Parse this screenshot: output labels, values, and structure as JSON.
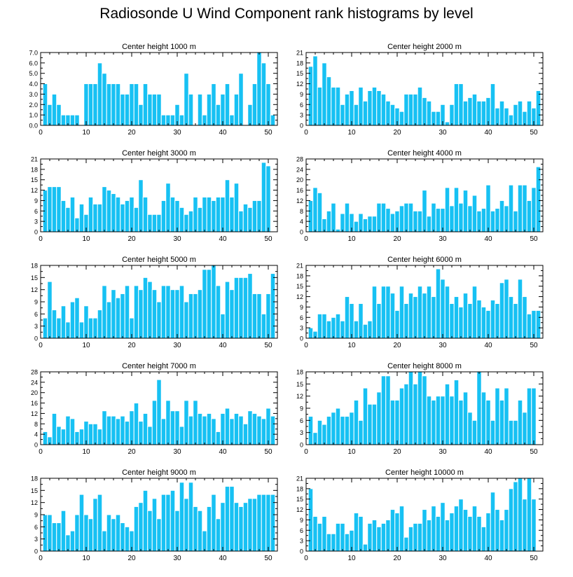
{
  "title": "Radiosonde U Wind Component rank histograms by level",
  "colors": {
    "bar": "#17C1F3",
    "bar_edge": "#ffffff",
    "axis": "#000000"
  },
  "chart_data": [
    {
      "type": "bar",
      "title": "Center height 1000 m",
      "ylim": [
        0,
        7
      ],
      "yticks": [
        0,
        1,
        2,
        3,
        4,
        5,
        6,
        7
      ],
      "ytick_labels": [
        "0.0",
        "1.0",
        "2.0",
        "3.0",
        "4.0",
        "5.0",
        "6.0",
        "7.0"
      ],
      "xlim": [
        0,
        52
      ],
      "xticks": [
        0,
        10,
        20,
        30,
        40,
        50
      ],
      "xtick_labels": [
        "0",
        "10",
        "20",
        "30",
        "40",
        "50"
      ],
      "y_axis_side": "left",
      "values": [
        4,
        2,
        3,
        2,
        1,
        1,
        1,
        1,
        0,
        4,
        4,
        4,
        6,
        5,
        4,
        4,
        4,
        3,
        3,
        4,
        4,
        2,
        4,
        3,
        3,
        3,
        1,
        1,
        1,
        2,
        1,
        5,
        3,
        0,
        3,
        1,
        3,
        4,
        2,
        3,
        4,
        1,
        3,
        5,
        0,
        2,
        4,
        7,
        6,
        4,
        1
      ]
    },
    {
      "type": "bar",
      "title": "Center height 2000 m",
      "ylim": [
        0,
        21
      ],
      "yticks": [
        0,
        3,
        6,
        9,
        12,
        15,
        18,
        21
      ],
      "ytick_labels": [
        "0",
        "3",
        "6",
        "9",
        "12",
        "15",
        "18",
        "21"
      ],
      "xlim": [
        0,
        52
      ],
      "xticks": [
        0,
        10,
        20,
        30,
        40,
        50
      ],
      "xtick_labels": [
        "0",
        "10",
        "20",
        "30",
        "40",
        "50"
      ],
      "y_axis_side": "right",
      "values": [
        17,
        20,
        11,
        18,
        14,
        11,
        11,
        6,
        9,
        10,
        6,
        11,
        7,
        10,
        11,
        10,
        9,
        7,
        6,
        5,
        4,
        9,
        9,
        9,
        11,
        8,
        7,
        4,
        4,
        6,
        1,
        6,
        12,
        12,
        7,
        8,
        9,
        7,
        7,
        8,
        12,
        5,
        7,
        5,
        3,
        6,
        7,
        4,
        7,
        5,
        10
      ]
    },
    {
      "type": "bar",
      "title": "Center height 3000 m",
      "ylim": [
        0,
        21
      ],
      "yticks": [
        0,
        3,
        6,
        9,
        12,
        15,
        18,
        21
      ],
      "ytick_labels": [
        "0",
        "3",
        "6",
        "9",
        "12",
        "15",
        "18",
        "21"
      ],
      "xlim": [
        0,
        52
      ],
      "xticks": [
        0,
        10,
        20,
        30,
        40,
        50
      ],
      "xtick_labels": [
        "0",
        "10",
        "20",
        "30",
        "40",
        "50"
      ],
      "y_axis_side": "left",
      "values": [
        12,
        13,
        13,
        13,
        9,
        7,
        10,
        4,
        8,
        5,
        10,
        8,
        8,
        13,
        12,
        11,
        10,
        8,
        9,
        10,
        7,
        15,
        10,
        5,
        5,
        5,
        9,
        14,
        10,
        9,
        7,
        5,
        6,
        10,
        7,
        10,
        10,
        9,
        10,
        10,
        15,
        10,
        14,
        6,
        8,
        7,
        9,
        9,
        20,
        19,
        0
      ]
    },
    {
      "type": "bar",
      "title": "Center height 4000 m",
      "ylim": [
        0,
        28
      ],
      "yticks": [
        0,
        4,
        8,
        12,
        16,
        20,
        24,
        28
      ],
      "ytick_labels": [
        "0",
        "4",
        "8",
        "12",
        "16",
        "20",
        "24",
        "28"
      ],
      "xlim": [
        0,
        52
      ],
      "xticks": [
        0,
        10,
        20,
        30,
        40,
        50
      ],
      "xtick_labels": [
        "0",
        "10",
        "20",
        "30",
        "40",
        "50"
      ],
      "y_axis_side": "right",
      "values": [
        12,
        17,
        15,
        5,
        8,
        11,
        1,
        7,
        11,
        7,
        4,
        7,
        5,
        6,
        6,
        11,
        11,
        9,
        7,
        8,
        10,
        11,
        11,
        8,
        8,
        16,
        6,
        11,
        9,
        9,
        17,
        10,
        17,
        11,
        16,
        10,
        14,
        8,
        9,
        18,
        8,
        9,
        12,
        10,
        18,
        8,
        18,
        18,
        12,
        17,
        25
      ]
    },
    {
      "type": "bar",
      "title": "Center height 5000 m",
      "ylim": [
        0,
        18
      ],
      "yticks": [
        0,
        3,
        6,
        9,
        12,
        15,
        18
      ],
      "ytick_labels": [
        "0",
        "3",
        "6",
        "9",
        "12",
        "15",
        "18"
      ],
      "xlim": [
        0,
        52
      ],
      "xticks": [
        0,
        10,
        20,
        30,
        40,
        50
      ],
      "xtick_labels": [
        "0",
        "10",
        "20",
        "30",
        "40",
        "50"
      ],
      "y_axis_side": "left",
      "values": [
        5,
        14,
        7,
        5,
        8,
        4,
        9,
        10,
        4,
        8,
        5,
        5,
        7,
        13,
        9,
        12,
        10,
        11,
        13,
        5,
        13,
        12,
        15,
        14,
        12,
        9,
        13,
        13,
        12,
        12,
        13,
        9,
        11,
        11,
        12,
        17,
        17,
        18,
        13,
        6,
        14,
        12,
        15,
        15,
        15,
        16,
        11,
        11,
        6,
        11,
        16
      ]
    },
    {
      "type": "bar",
      "title": "Center height 6000 m",
      "ylim": [
        0,
        21
      ],
      "yticks": [
        0,
        3,
        6,
        9,
        12,
        15,
        18,
        21
      ],
      "ytick_labels": [
        "0",
        "3",
        "6",
        "9",
        "12",
        "15",
        "18",
        "21"
      ],
      "xlim": [
        0,
        52
      ],
      "xticks": [
        0,
        10,
        20,
        30,
        40,
        50
      ],
      "xtick_labels": [
        "0",
        "10",
        "20",
        "30",
        "40",
        "50"
      ],
      "y_axis_side": "right",
      "values": [
        3,
        2,
        7,
        7,
        5,
        6,
        7,
        5,
        12,
        10,
        5,
        10,
        4,
        5,
        15,
        10,
        15,
        15,
        13,
        8,
        15,
        10,
        13,
        12,
        15,
        13,
        15,
        12,
        20,
        17,
        15,
        10,
        12,
        9,
        13,
        10,
        15,
        11,
        9,
        8,
        11,
        10,
        16,
        17,
        12,
        10,
        17,
        12,
        7,
        8,
        8
      ]
    },
    {
      "type": "bar",
      "title": "Center height 7000 m",
      "ylim": [
        0,
        28
      ],
      "yticks": [
        0,
        4,
        8,
        12,
        16,
        20,
        24,
        28
      ],
      "ytick_labels": [
        "0",
        "4",
        "8",
        "12",
        "16",
        "20",
        "24",
        "28"
      ],
      "xlim": [
        0,
        52
      ],
      "xticks": [
        0,
        10,
        20,
        30,
        40,
        50
      ],
      "xtick_labels": [
        "0",
        "10",
        "20",
        "30",
        "40",
        "50"
      ],
      "y_axis_side": "left",
      "values": [
        5,
        3,
        12,
        7,
        6,
        11,
        10,
        5,
        6,
        9,
        8,
        8,
        6,
        13,
        11,
        11,
        10,
        11,
        9,
        13,
        16,
        9,
        12,
        7,
        17,
        25,
        10,
        17,
        13,
        13,
        7,
        17,
        11,
        17,
        12,
        11,
        12,
        10,
        5,
        12,
        14,
        10,
        12,
        11,
        8,
        13,
        12,
        11,
        10,
        14,
        11
      ]
    },
    {
      "type": "bar",
      "title": "Center height 8000 m",
      "ylim": [
        0,
        18
      ],
      "yticks": [
        0,
        3,
        6,
        9,
        12,
        15,
        18
      ],
      "ytick_labels": [
        "0",
        "3",
        "6",
        "9",
        "12",
        "15",
        "18"
      ],
      "xlim": [
        0,
        52
      ],
      "xticks": [
        0,
        10,
        20,
        30,
        40,
        50
      ],
      "xtick_labels": [
        "0",
        "10",
        "20",
        "30",
        "40",
        "50"
      ],
      "y_axis_side": "right",
      "values": [
        7,
        3,
        6,
        5,
        7,
        8,
        9,
        7,
        7,
        8,
        11,
        6,
        14,
        10,
        10,
        13,
        17,
        17,
        11,
        11,
        14,
        15,
        18,
        15,
        18,
        17,
        12,
        11,
        12,
        12,
        15,
        12,
        16,
        11,
        13,
        8,
        6,
        18,
        13,
        11,
        6,
        14,
        11,
        14,
        6,
        6,
        11,
        8,
        14,
        14,
        0
      ]
    },
    {
      "type": "bar",
      "title": "Center height 9000 m",
      "ylim": [
        0,
        18
      ],
      "yticks": [
        0,
        3,
        6,
        9,
        12,
        15,
        18
      ],
      "ytick_labels": [
        "0",
        "3",
        "6",
        "9",
        "12",
        "15",
        "18"
      ],
      "xlim": [
        0,
        52
      ],
      "xticks": [
        0,
        10,
        20,
        30,
        40,
        50
      ],
      "xtick_labels": [
        "0",
        "10",
        "20",
        "30",
        "40",
        "50"
      ],
      "y_axis_side": "left",
      "values": [
        9,
        9,
        7,
        7,
        10,
        4,
        5,
        9,
        14,
        9,
        8,
        13,
        14,
        5,
        9,
        8,
        9,
        7,
        6,
        5,
        11,
        12,
        15,
        10,
        13,
        8,
        14,
        14,
        15,
        10,
        17,
        13,
        17,
        11,
        10,
        5,
        11,
        14,
        8,
        12,
        16,
        16,
        12,
        11,
        12,
        13,
        13,
        14,
        14,
        14,
        14
      ]
    },
    {
      "type": "bar",
      "title": "Center height 10000 m",
      "ylim": [
        0,
        21
      ],
      "yticks": [
        0,
        3,
        6,
        9,
        12,
        15,
        18,
        21
      ],
      "ytick_labels": [
        "0",
        "3",
        "6",
        "9",
        "12",
        "15",
        "18",
        "21"
      ],
      "xlim": [
        0,
        52
      ],
      "xticks": [
        0,
        10,
        20,
        30,
        40,
        50
      ],
      "xtick_labels": [
        "0",
        "10",
        "20",
        "30",
        "40",
        "50"
      ],
      "y_axis_side": "right",
      "values": [
        18,
        10,
        8,
        10,
        5,
        5,
        8,
        8,
        5,
        6,
        11,
        10,
        2,
        8,
        9,
        7,
        8,
        9,
        12,
        11,
        13,
        4,
        7,
        8,
        8,
        12,
        9,
        13,
        10,
        14,
        9,
        11,
        13,
        15,
        12,
        10,
        13,
        10,
        7,
        11,
        17,
        12,
        9,
        12,
        18,
        20,
        21,
        15,
        21,
        15,
        0
      ]
    }
  ]
}
